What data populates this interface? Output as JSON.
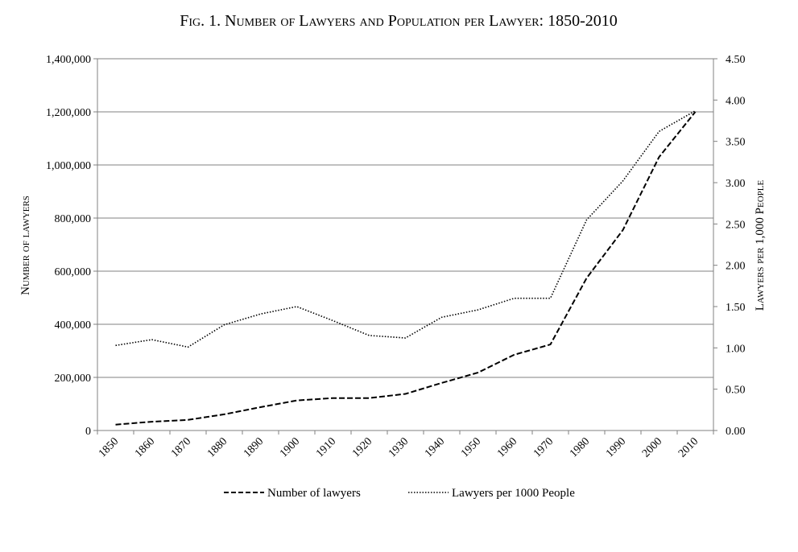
{
  "chart_data": {
    "type": "line",
    "title": "Fig. 1. Number of Lawyers and Population per Lawyer: 1850-2010",
    "categories": [
      "1850",
      "1860",
      "1870",
      "1880",
      "1890",
      "1900",
      "1910",
      "1920",
      "1930",
      "1940",
      "1950",
      "1960",
      "1970",
      "1980",
      "1990",
      "2000",
      "2010"
    ],
    "ylabel_left": "Number of lawyers",
    "ylabel_right": "Lawyers per 1,000 People",
    "ylim_left": [
      0,
      1400000
    ],
    "ylim_right": [
      0,
      4.5
    ],
    "yticks_left": [
      "0",
      "200,000",
      "400,000",
      "600,000",
      "800,000",
      "1,000,000",
      "1,200,000",
      "1,400,000"
    ],
    "yticks_right": [
      "0.00",
      "0.50",
      "1.00",
      "1.50",
      "2.00",
      "2.50",
      "3.00",
      "3.50",
      "4.00",
      "4.50"
    ],
    "grid": true,
    "legend_position": "bottom",
    "series": [
      {
        "name": "Number of lawyers",
        "axis": "left",
        "style": "dashed",
        "values": [
          22000,
          33000,
          40000,
          61000,
          88000,
          113000,
          122000,
          122000,
          138000,
          179000,
          218000,
          285000,
          324000,
          574000,
          755000,
          1030000,
          1200000
        ]
      },
      {
        "name": "Lawyers per 1000 People",
        "axis": "right",
        "style": "dotted",
        "values": [
          1.03,
          1.1,
          1.01,
          1.28,
          1.41,
          1.5,
          1.33,
          1.15,
          1.12,
          1.37,
          1.46,
          1.6,
          1.6,
          2.55,
          3.02,
          3.62,
          3.87
        ]
      }
    ]
  }
}
